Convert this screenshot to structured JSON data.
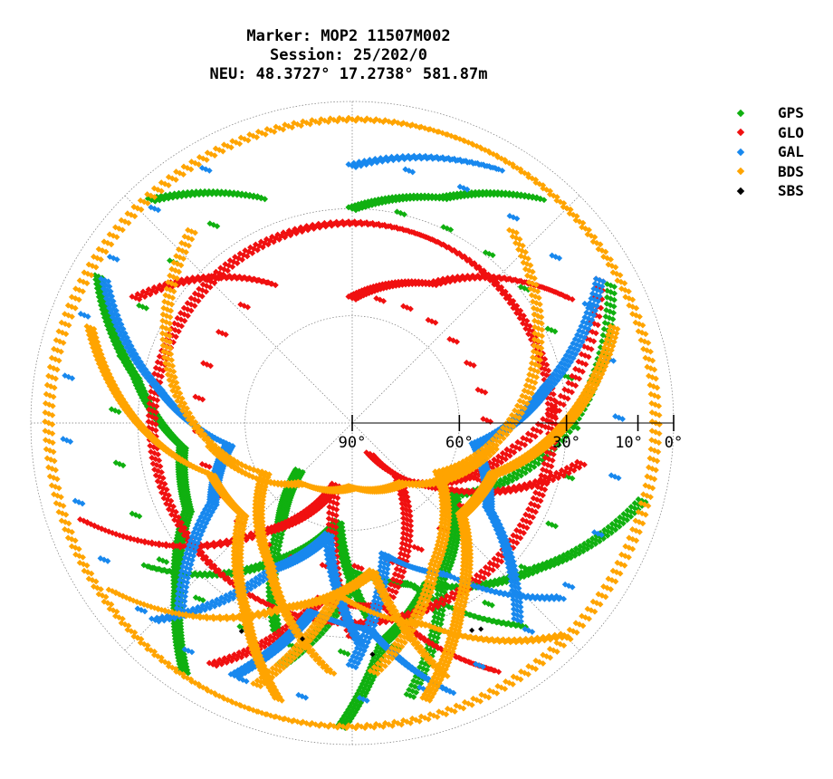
{
  "title": {
    "line1": "Marker: MOP2 11507M002",
    "line2": "Session: 25/202/0",
    "line3": "NEU: 48.3727° 17.2738° 581.87m"
  },
  "legend": [
    {
      "name": "GPS",
      "color": "#10b010"
    },
    {
      "name": "GLO",
      "color": "#f01010"
    },
    {
      "name": "GAL",
      "color": "#1888ee"
    },
    {
      "name": "BDS",
      "color": "#ffa400"
    },
    {
      "name": "SBS",
      "color": "#000000"
    }
  ],
  "chart_data": {
    "type": "scatter",
    "projection": "polar-skyplot",
    "elevation_ticks": [
      "90°",
      "60°",
      "30°",
      "10°",
      "0°"
    ],
    "elevation_tick_values": [
      90,
      60,
      30,
      10,
      0
    ],
    "radial_grid_elevations": [
      60,
      30,
      0
    ],
    "azimuth_grid_deg": [
      0,
      45,
      90,
      135,
      180,
      225,
      270,
      315
    ],
    "grid": true,
    "legend_position": "top-right",
    "series": [
      {
        "name": "GPS",
        "color": "#10b010",
        "tracks": [
          {
            "az": [
              300,
              282,
              262,
              242,
              226,
              214
            ],
            "el": [
              8,
              28,
              42,
              38,
              22,
              6
            ]
          },
          {
            "az": [
              318,
              338,
              0,
              22,
              40
            ],
            "el": [
              6,
              22,
              30,
              22,
              8
            ]
          },
          {
            "az": [
              62,
              92,
              125,
              150,
              168
            ],
            "el": [
              8,
              30,
              55,
              40,
              12
            ]
          },
          {
            "az": [
              105,
              128,
              155,
              172,
              182
            ],
            "el": [
              6,
              24,
              40,
              28,
              5
            ]
          },
          {
            "az": [
              235,
              210,
              188,
              175
            ],
            "el": [
              20,
              45,
              62,
              35
            ]
          },
          {
            "az": [
              140,
              160,
              178,
              196
            ],
            "el": [
              16,
              42,
              48,
              20
            ]
          },
          {
            "az": [
              200,
              215,
              228
            ],
            "el": [
              28,
              55,
              70
            ]
          }
        ]
      },
      {
        "name": "GLO",
        "color": "#f01010",
        "tracks": [
          {
            "az": [
              0,
              45,
              90,
              135,
              180,
              225,
              270,
              315,
              360
            ],
            "el": [
              34,
              34,
              34,
              34,
              34,
              34,
              34,
              34,
              34
            ]
          },
          {
            "az": [
              300,
              330,
              0,
              30,
              60
            ],
            "el": [
              20,
              45,
              55,
              45,
              20
            ]
          },
          {
            "az": [
              60,
              100,
              140,
              170
            ],
            "el": [
              10,
              45,
              70,
              38
            ]
          },
          {
            "az": [
              250,
              220,
              195,
              180
            ],
            "el": [
              10,
              50,
              72,
              30
            ]
          },
          {
            "az": [
              150,
              170,
              190,
              210
            ],
            "el": [
              10,
              38,
              40,
              12
            ]
          },
          {
            "az": [
              100,
              125,
              150
            ],
            "el": [
              25,
              58,
              80
            ]
          }
        ]
      },
      {
        "name": "GAL",
        "color": "#1888ee",
        "tracks": [
          {
            "az": [
              300,
              280,
              260,
              240,
              222
            ],
            "el": [
              10,
              35,
              55,
              45,
              18
            ]
          },
          {
            "az": [
              60,
              80,
              100,
              122,
              140
            ],
            "el": [
              10,
              35,
              55,
              45,
              18
            ]
          },
          {
            "az": [
              330,
              0,
              30
            ],
            "el": [
              8,
              18,
              8
            ]
          },
          {
            "az": [
              160,
              175,
              192,
              205
            ],
            "el": [
              10,
              32,
              36,
              12
            ]
          },
          {
            "az": [
              130,
              148,
              166,
              180
            ],
            "el": [
              14,
              40,
              52,
              22
            ]
          },
          {
            "az": [
              225,
              208,
              192,
              178
            ],
            "el": [
              12,
              44,
              58,
              28
            ]
          }
        ]
      },
      {
        "name": "BDS",
        "color": "#ffa400",
        "tracks": [
          {
            "az": [
              0,
              45,
              90,
              135,
              180,
              225,
              270,
              315,
              360
            ],
            "el": [
              5,
              5,
              5,
              5,
              5,
              5,
              5,
              5,
              5
            ]
          },
          {
            "az": [
              290,
              270,
              250,
              230,
              210,
              195
            ],
            "el": [
              12,
              30,
              48,
              50,
              30,
              10
            ]
          },
          {
            "az": [
              70,
              90,
              110,
              130,
              150,
              165
            ],
            "el": [
              12,
              30,
              48,
              50,
              30,
              10
            ]
          },
          {
            "az": [
              40,
              80,
              120,
              150,
              175
            ],
            "el": [
              20,
              40,
              62,
              44,
              20
            ]
          },
          {
            "az": [
              320,
              280,
              240,
              210,
              185
            ],
            "el": [
              20,
              40,
              62,
              44,
              20
            ]
          },
          {
            "az": [
              135,
              160,
              185,
              200
            ],
            "el": [
              6,
              30,
              42,
              12
            ]
          },
          {
            "az": [
              235,
              200,
              172,
              160
            ],
            "el": [
              8,
              35,
              48,
              15
            ]
          },
          {
            "az": [
              100,
              140,
              180,
              220,
              260
            ],
            "el": [
              50,
              68,
              72,
              68,
              50
            ]
          }
        ]
      },
      {
        "name": "SBS",
        "color": "#000000",
        "points": [
          {
            "az": 148,
            "el": 22
          },
          {
            "az": 150,
            "el": 23
          },
          {
            "az": 208,
            "el": 24
          },
          {
            "az": 193,
            "el": 28
          },
          {
            "az": 175,
            "el": 25
          }
        ]
      }
    ]
  }
}
